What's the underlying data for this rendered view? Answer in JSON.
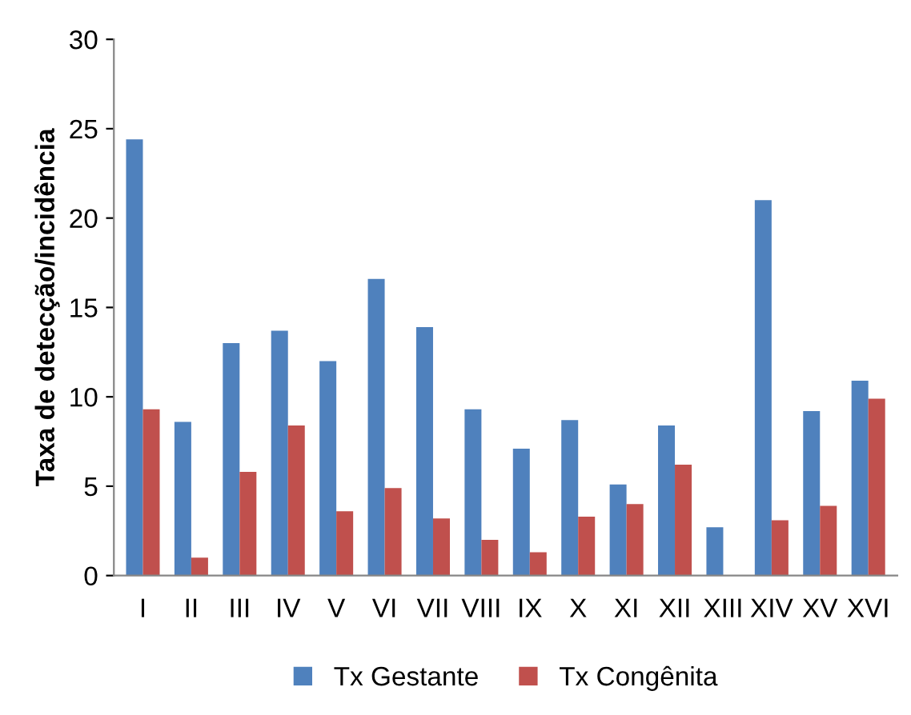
{
  "chart_data": {
    "type": "bar",
    "ylabel": "Taxa de detecção/incidência",
    "categories": [
      "I",
      "II",
      "III",
      "IV",
      "V",
      "VI",
      "VII",
      "VIII",
      "IX",
      "X",
      "XI",
      "XII",
      "XIII",
      "XIV",
      "XV",
      "XVI"
    ],
    "series": [
      {
        "name": "Tx Gestante",
        "color": "#4f81bd",
        "values": [
          24.4,
          8.6,
          13.0,
          13.7,
          12.0,
          16.6,
          13.9,
          9.3,
          7.1,
          8.7,
          5.1,
          8.4,
          2.7,
          21.0,
          9.2,
          10.9
        ]
      },
      {
        "name": "Tx Congênita",
        "color": "#c0504d",
        "values": [
          9.3,
          1.0,
          5.8,
          8.4,
          3.6,
          4.9,
          3.2,
          2.0,
          1.3,
          3.3,
          4.0,
          6.2,
          0,
          3.1,
          3.9,
          9.9
        ]
      }
    ],
    "ylim": [
      0,
      30
    ],
    "yticks": [
      0,
      5,
      10,
      15,
      20,
      25,
      30
    ],
    "grid": false,
    "legend": "bottom"
  }
}
